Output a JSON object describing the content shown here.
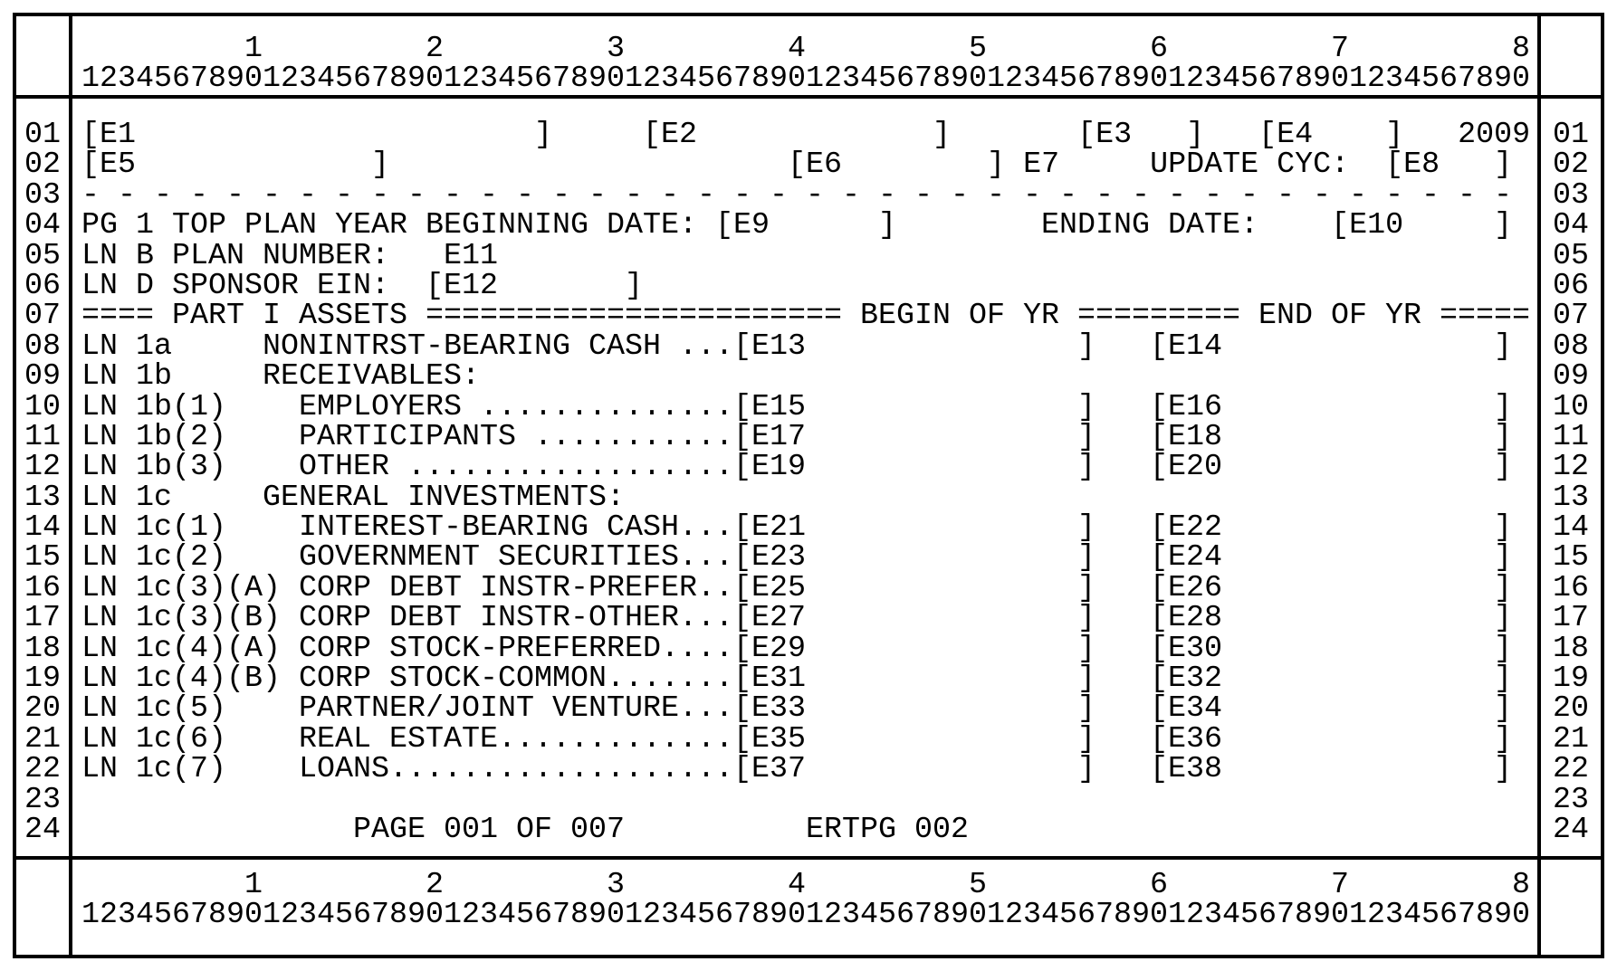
{
  "screen": {
    "background": "#ffffff",
    "foreground": "#000000",
    "ruler": {
      "tens": "         1         2         3         4         5         6         7         8",
      "ones": "12345678901234567890123456789012345678901234567890123456789012345678901234567890"
    },
    "row_numbers": [
      "01",
      "02",
      "03",
      "04",
      "05",
      "06",
      "07",
      "08",
      "09",
      "10",
      "11",
      "12",
      "13",
      "14",
      "15",
      "16",
      "17",
      "18",
      "19",
      "20",
      "21",
      "22",
      "23",
      "24"
    ],
    "lines": [
      {
        "segs": [
          {
            "text": "[E1                      ]",
            "name": "field-E1",
            "input": true
          },
          {
            "text": "     ",
            "name": "gap"
          },
          {
            "text": "[E2             ]",
            "name": "field-E2",
            "input": true
          },
          {
            "text": "       ",
            "name": "gap"
          },
          {
            "text": "[E3   ]",
            "name": "field-E3",
            "input": true
          },
          {
            "text": "   ",
            "name": "gap"
          },
          {
            "text": "[E4    ]",
            "name": "field-E4",
            "input": true
          },
          {
            "text": "   ",
            "name": "gap"
          },
          {
            "text": "2009",
            "name": "tax-year"
          }
        ]
      },
      {
        "segs": [
          {
            "text": "[E5             ]",
            "name": "field-E5",
            "input": true
          },
          {
            "text": "                      ",
            "name": "gap"
          },
          {
            "text": "[E6        ]",
            "name": "field-E6",
            "input": true
          },
          {
            "text": " ",
            "name": "gap"
          },
          {
            "text": "E7",
            "name": "field-E7"
          },
          {
            "text": "     ",
            "name": "gap"
          },
          {
            "text": "UPDATE CYC:",
            "name": "update-cyc-label"
          },
          {
            "text": "  ",
            "name": "gap"
          },
          {
            "text": "[E8   ]",
            "name": "field-E8",
            "input": true
          }
        ]
      },
      {
        "segs": [
          {
            "text": "- - - - - - - - - - - - - - - - - - - - - - - - - - - - - - - - - - - - - - - -",
            "name": "dashed-divider"
          }
        ]
      },
      {
        "segs": [
          {
            "text": "PG 1 TOP PLAN YEAR BEGINNING DATE: ",
            "name": "plan-year-beginning-date-label"
          },
          {
            "text": "[E9      ]",
            "name": "field-E9",
            "input": true
          },
          {
            "text": "        ",
            "name": "gap"
          },
          {
            "text": "ENDING DATE:",
            "name": "ending-date-label"
          },
          {
            "text": "    ",
            "name": "gap"
          },
          {
            "text": "[E10     ]",
            "name": "field-E10",
            "input": true
          }
        ]
      },
      {
        "segs": [
          {
            "text": "LN B PLAN NUMBER:",
            "name": "plan-number-label"
          },
          {
            "text": "   ",
            "name": "gap"
          },
          {
            "text": "E11",
            "name": "field-E11"
          }
        ]
      },
      {
        "segs": [
          {
            "text": "LN D SPONSOR EIN:",
            "name": "sponsor-ein-label"
          },
          {
            "text": "  ",
            "name": "gap"
          },
          {
            "text": "[E12       ]",
            "name": "field-E12",
            "input": true
          }
        ]
      },
      {
        "segs": [
          {
            "text": "==== PART I ASSETS ======================= BEGIN OF YR ========= END OF YR =====",
            "name": "part-i-assets-header"
          }
        ]
      },
      {
        "segs": [
          {
            "text": "LN 1a     NONINTRST-BEARING CASH ...",
            "name": "line-1a-label"
          },
          {
            "text": "[E13               ]",
            "name": "field-E13",
            "input": true
          },
          {
            "text": "   ",
            "name": "gap"
          },
          {
            "text": "[E14               ]",
            "name": "field-E14",
            "input": true
          }
        ]
      },
      {
        "segs": [
          {
            "text": "LN 1b     RECEIVABLES:",
            "name": "line-1b-label"
          }
        ]
      },
      {
        "segs": [
          {
            "text": "LN 1b(1)    EMPLOYERS ..............",
            "name": "line-1b1-label"
          },
          {
            "text": "[E15               ]",
            "name": "field-E15",
            "input": true
          },
          {
            "text": "   ",
            "name": "gap"
          },
          {
            "text": "[E16               ]",
            "name": "field-E16",
            "input": true
          }
        ]
      },
      {
        "segs": [
          {
            "text": "LN 1b(2)    PARTICIPANTS ...........",
            "name": "line-1b2-label"
          },
          {
            "text": "[E17               ]",
            "name": "field-E17",
            "input": true
          },
          {
            "text": "   ",
            "name": "gap"
          },
          {
            "text": "[E18               ]",
            "name": "field-E18",
            "input": true
          }
        ]
      },
      {
        "segs": [
          {
            "text": "LN 1b(3)    OTHER ..................",
            "name": "line-1b3-label"
          },
          {
            "text": "[E19               ]",
            "name": "field-E19",
            "input": true
          },
          {
            "text": "   ",
            "name": "gap"
          },
          {
            "text": "[E20               ]",
            "name": "field-E20",
            "input": true
          }
        ]
      },
      {
        "segs": [
          {
            "text": "LN 1c     GENERAL INVESTMENTS:",
            "name": "line-1c-label"
          }
        ]
      },
      {
        "segs": [
          {
            "text": "LN 1c(1)    INTEREST-BEARING CASH...",
            "name": "line-1c1-label"
          },
          {
            "text": "[E21               ]",
            "name": "field-E21",
            "input": true
          },
          {
            "text": "   ",
            "name": "gap"
          },
          {
            "text": "[E22               ]",
            "name": "field-E22",
            "input": true
          }
        ]
      },
      {
        "segs": [
          {
            "text": "LN 1c(2)    GOVERNMENT SECURITIES...",
            "name": "line-1c2-label"
          },
          {
            "text": "[E23               ]",
            "name": "field-E23",
            "input": true
          },
          {
            "text": "   ",
            "name": "gap"
          },
          {
            "text": "[E24               ]",
            "name": "field-E24",
            "input": true
          }
        ]
      },
      {
        "segs": [
          {
            "text": "LN 1c(3)(A) CORP DEBT INSTR-PREFER..",
            "name": "line-1c3a-label"
          },
          {
            "text": "[E25               ]",
            "name": "field-E25",
            "input": true
          },
          {
            "text": "   ",
            "name": "gap"
          },
          {
            "text": "[E26               ]",
            "name": "field-E26",
            "input": true
          }
        ]
      },
      {
        "segs": [
          {
            "text": "LN 1c(3)(B) CORP DEBT INSTR-OTHER...",
            "name": "line-1c3b-label"
          },
          {
            "text": "[E27               ]",
            "name": "field-E27",
            "input": true
          },
          {
            "text": "   ",
            "name": "gap"
          },
          {
            "text": "[E28               ]",
            "name": "field-E28",
            "input": true
          }
        ]
      },
      {
        "segs": [
          {
            "text": "LN 1c(4)(A) CORP STOCK-PREFERRED....",
            "name": "line-1c4a-label"
          },
          {
            "text": "[E29               ]",
            "name": "field-E29",
            "input": true
          },
          {
            "text": "   ",
            "name": "gap"
          },
          {
            "text": "[E30               ]",
            "name": "field-E30",
            "input": true
          }
        ]
      },
      {
        "segs": [
          {
            "text": "LN 1c(4)(B) CORP STOCK-COMMON.......",
            "name": "line-1c4b-label"
          },
          {
            "text": "[E31               ]",
            "name": "field-E31",
            "input": true
          },
          {
            "text": "   ",
            "name": "gap"
          },
          {
            "text": "[E32               ]",
            "name": "field-E32",
            "input": true
          }
        ]
      },
      {
        "segs": [
          {
            "text": "LN 1c(5)    PARTNER/JOINT VENTURE...",
            "name": "line-1c5-label"
          },
          {
            "text": "[E33               ]",
            "name": "field-E33",
            "input": true
          },
          {
            "text": "   ",
            "name": "gap"
          },
          {
            "text": "[E34               ]",
            "name": "field-E34",
            "input": true
          }
        ]
      },
      {
        "segs": [
          {
            "text": "LN 1c(6)    REAL ESTATE.............",
            "name": "line-1c6-label"
          },
          {
            "text": "[E35               ]",
            "name": "field-E35",
            "input": true
          },
          {
            "text": "   ",
            "name": "gap"
          },
          {
            "text": "[E36               ]",
            "name": "field-E36",
            "input": true
          }
        ]
      },
      {
        "segs": [
          {
            "text": "LN 1c(7)    LOANS...................",
            "name": "line-1c7-label"
          },
          {
            "text": "[E37               ]",
            "name": "field-E37",
            "input": true
          },
          {
            "text": "   ",
            "name": "gap"
          },
          {
            "text": "[E38               ]",
            "name": "field-E38",
            "input": true
          }
        ]
      },
      {
        "segs": []
      },
      {
        "segs": [
          {
            "text": "               ",
            "name": "gap"
          },
          {
            "text": "PAGE 001 OF 007",
            "name": "page-indicator"
          },
          {
            "text": "          ",
            "name": "gap"
          },
          {
            "text": "ERTPG 002",
            "name": "screen-id"
          }
        ]
      }
    ]
  }
}
